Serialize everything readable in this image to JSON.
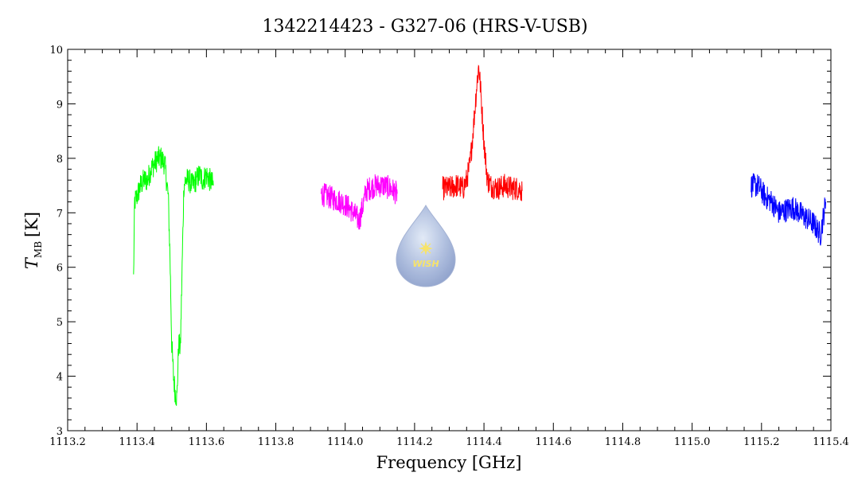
{
  "chart_data": {
    "type": "line",
    "title": "1342214423 - G327-06 (HRS-V-USB)",
    "xlabel": "Frequency [GHz]",
    "ylabel_main": "T",
    "ylabel_sub": "MB",
    "ylabel_unit": "[K]",
    "xlim": [
      1113.2,
      1115.4
    ],
    "ylim": [
      3,
      10
    ],
    "xticks": [
      "1113.2",
      "1113.4",
      "1113.6",
      "1113.8",
      "1114.0",
      "1114.2",
      "1114.4",
      "1114.6",
      "1114.8",
      "1115.0",
      "1115.2",
      "1115.4"
    ],
    "yticks": [
      "3",
      "4",
      "5",
      "6",
      "7",
      "8",
      "9",
      "10"
    ],
    "grid": false,
    "series": [
      {
        "color": "#00ff00",
        "x": [
          1113.39,
          1113.393,
          1113.4,
          1113.41,
          1113.42,
          1113.43,
          1113.44,
          1113.45,
          1113.46,
          1113.47,
          1113.48,
          1113.49,
          1113.495,
          1113.5,
          1113.505,
          1113.51,
          1113.515,
          1113.52,
          1113.525,
          1113.53,
          1113.535,
          1113.54,
          1113.55,
          1113.56,
          1113.57,
          1113.58,
          1113.59,
          1113.6,
          1113.61,
          1113.62
        ],
        "y": [
          5.8,
          7.2,
          7.3,
          7.5,
          7.6,
          7.6,
          7.8,
          7.9,
          8.0,
          8.0,
          7.9,
          7.3,
          6.2,
          4.6,
          4.0,
          3.7,
          3.6,
          4.6,
          4.5,
          6.0,
          7.5,
          7.6,
          7.6,
          7.5,
          7.6,
          7.7,
          7.6,
          7.7,
          7.6,
          7.5
        ]
      },
      {
        "color": "#ff00ff",
        "x": [
          1113.93,
          1113.95,
          1113.97,
          1113.99,
          1114.01,
          1114.03,
          1114.04,
          1114.05,
          1114.06,
          1114.07,
          1114.09,
          1114.11,
          1114.13,
          1114.15
        ],
        "y": [
          7.35,
          7.3,
          7.25,
          7.2,
          7.1,
          6.95,
          6.85,
          7.1,
          7.4,
          7.45,
          7.5,
          7.5,
          7.45,
          7.35
        ]
      },
      {
        "color": "#ff0000",
        "x": [
          1114.28,
          1114.3,
          1114.32,
          1114.34,
          1114.35,
          1114.36,
          1114.37,
          1114.38,
          1114.385,
          1114.39,
          1114.4,
          1114.41,
          1114.42,
          1114.44,
          1114.46,
          1114.48,
          1114.5,
          1114.51
        ],
        "y": [
          7.45,
          7.45,
          7.5,
          7.45,
          7.6,
          7.9,
          8.6,
          9.4,
          9.7,
          9.3,
          8.3,
          7.6,
          7.5,
          7.45,
          7.5,
          7.45,
          7.45,
          7.4
        ]
      },
      {
        "color": "#0000ff",
        "x": [
          1115.17,
          1115.19,
          1115.21,
          1115.23,
          1115.25,
          1115.27,
          1115.29,
          1115.31,
          1115.33,
          1115.35,
          1115.37,
          1115.385
        ],
        "y": [
          7.5,
          7.5,
          7.3,
          7.2,
          7.0,
          7.05,
          7.1,
          7.0,
          6.9,
          6.8,
          6.6,
          7.2
        ]
      }
    ]
  },
  "logo": {
    "text": "WISH",
    "icon": "star-icon"
  }
}
